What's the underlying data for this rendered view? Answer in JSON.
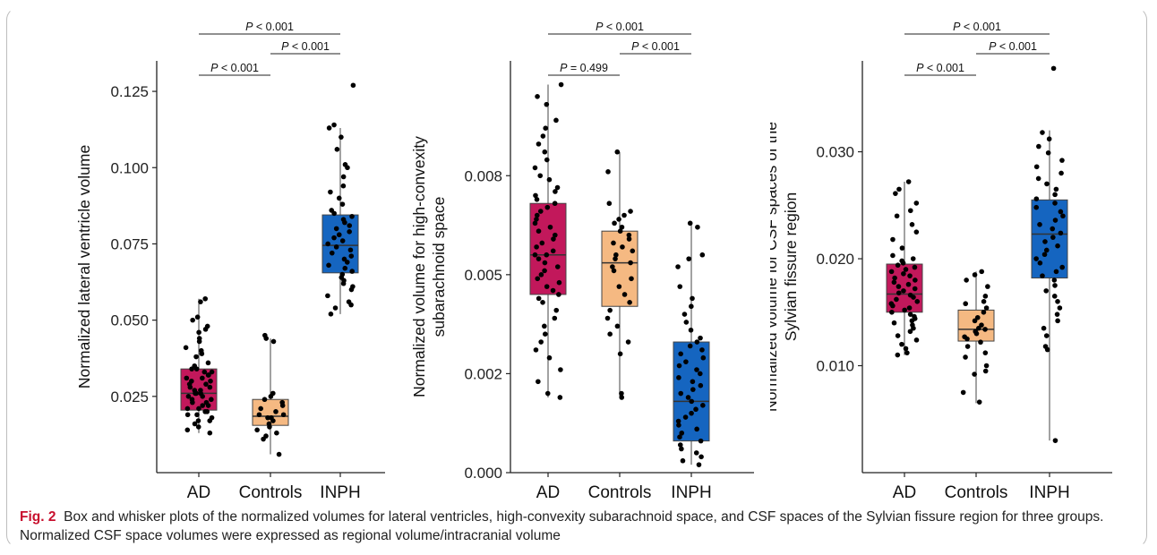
{
  "figure": {
    "caption_label": "Fig. 2",
    "caption_text": "Box and whisker plots of the normalized volumes for lateral ventricles, high-convexity subarachnoid space, and CSF spaces of the Sylvian fissure region for three groups. Normalized CSF space volumes were expressed as regional volume/intracranial volume",
    "caption_label_color": "#c8102e"
  },
  "colors": {
    "AD": "#c2185b",
    "Controls": "#f5b982",
    "INPH": "#1565c0"
  },
  "chart_data": [
    {
      "type": "box",
      "ylabel": "Normalized lateral ventricle volume",
      "categories": [
        "AD",
        "Controls",
        "INPH"
      ],
      "ylim": [
        0.0,
        0.135
      ],
      "yticks": [
        0.025,
        0.05,
        0.075,
        0.1,
        0.125
      ],
      "ytick_labels": [
        "0.025",
        "0.050",
        "0.075",
        "0.100",
        "0.125"
      ],
      "boxes": [
        {
          "group": "AD",
          "whisker_low": 0.013,
          "q1": 0.0205,
          "median": 0.026,
          "q3": 0.034,
          "whisker_high": 0.057
        },
        {
          "group": "Controls",
          "whisker_low": 0.006,
          "q1": 0.0155,
          "median": 0.0185,
          "q3": 0.024,
          "whisker_high": 0.044
        },
        {
          "group": "INPH",
          "whisker_low": 0.052,
          "q1": 0.0655,
          "median": 0.0745,
          "q3": 0.0845,
          "whisker_high": 0.113
        }
      ],
      "points": {
        "AD": [
          0.057,
          0.056,
          0.051,
          0.05,
          0.048,
          0.047,
          0.046,
          0.044,
          0.043,
          0.041,
          0.04,
          0.039,
          0.038,
          0.036,
          0.035,
          0.034,
          0.034,
          0.033,
          0.033,
          0.032,
          0.032,
          0.031,
          0.031,
          0.03,
          0.03,
          0.029,
          0.029,
          0.028,
          0.028,
          0.027,
          0.027,
          0.026,
          0.026,
          0.026,
          0.025,
          0.025,
          0.024,
          0.024,
          0.023,
          0.023,
          0.022,
          0.022,
          0.021,
          0.021,
          0.02,
          0.02,
          0.019,
          0.019,
          0.018,
          0.017,
          0.017,
          0.016,
          0.015,
          0.014,
          0.013
        ],
        "Controls": [
          0.045,
          0.044,
          0.043,
          0.026,
          0.025,
          0.024,
          0.023,
          0.022,
          0.021,
          0.02,
          0.019,
          0.019,
          0.018,
          0.018,
          0.017,
          0.016,
          0.015,
          0.014,
          0.013,
          0.012,
          0.011,
          0.006
        ],
        "INPH": [
          0.127,
          0.114,
          0.113,
          0.11,
          0.106,
          0.101,
          0.1,
          0.097,
          0.094,
          0.092,
          0.09,
          0.088,
          0.086,
          0.085,
          0.084,
          0.083,
          0.082,
          0.081,
          0.08,
          0.079,
          0.078,
          0.077,
          0.076,
          0.075,
          0.074,
          0.073,
          0.072,
          0.071,
          0.07,
          0.069,
          0.068,
          0.067,
          0.066,
          0.065,
          0.064,
          0.063,
          0.062,
          0.061,
          0.06,
          0.058,
          0.056,
          0.055,
          0.054,
          0.052
        ]
      },
      "comparisons": [
        {
          "from": "AD",
          "to": "INPH",
          "label": "P < 0.001",
          "level": 3
        },
        {
          "from": "Controls",
          "to": "INPH",
          "label": "P < 0.001",
          "level": 2
        },
        {
          "from": "AD",
          "to": "Controls",
          "label": "P < 0.001",
          "level": 1
        }
      ]
    },
    {
      "type": "box",
      "ylabel_lines": [
        "Normalized volume for high-convexity",
        "subarachnoid space"
      ],
      "categories": [
        "AD",
        "Controls",
        "INPH"
      ],
      "ylim": [
        0.0,
        0.0104
      ],
      "yticks": [
        0.0,
        0.0025,
        0.005,
        0.0075
      ],
      "ytick_labels": [
        "0.000",
        "0.002",
        "0.005",
        "0.008"
      ],
      "boxes": [
        {
          "group": "AD",
          "whisker_low": 0.0019,
          "q1": 0.0045,
          "median": 0.0055,
          "q3": 0.0068,
          "whisker_high": 0.0098
        },
        {
          "group": "Controls",
          "whisker_low": 0.0019,
          "q1": 0.0042,
          "median": 0.0053,
          "q3": 0.0061,
          "whisker_high": 0.0081
        },
        {
          "group": "INPH",
          "whisker_low": 0.0002,
          "q1": 0.0008,
          "median": 0.0018,
          "q3": 0.0033,
          "whisker_high": 0.0063
        }
      ],
      "points": {
        "AD": [
          0.0098,
          0.0095,
          0.0093,
          0.0089,
          0.0087,
          0.0085,
          0.0083,
          0.0081,
          0.0079,
          0.0077,
          0.0075,
          0.0074,
          0.0072,
          0.0071,
          0.007,
          0.0069,
          0.0068,
          0.0067,
          0.0066,
          0.0065,
          0.0064,
          0.0063,
          0.0062,
          0.0061,
          0.006,
          0.0059,
          0.0058,
          0.0057,
          0.0056,
          0.0055,
          0.0055,
          0.0054,
          0.0053,
          0.0052,
          0.0051,
          0.005,
          0.0049,
          0.0048,
          0.0047,
          0.0046,
          0.0045,
          0.0044,
          0.0043,
          0.0041,
          0.0039,
          0.0037,
          0.0035,
          0.0033,
          0.0031,
          0.0029,
          0.0026,
          0.0023,
          0.002,
          0.0019
        ],
        "Controls": [
          0.0081,
          0.0076,
          0.0068,
          0.0066,
          0.0065,
          0.0064,
          0.0063,
          0.0062,
          0.0061,
          0.006,
          0.0059,
          0.0058,
          0.0057,
          0.0056,
          0.0055,
          0.0054,
          0.0053,
          0.0052,
          0.0051,
          0.0049,
          0.0047,
          0.0045,
          0.0043,
          0.0041,
          0.0039,
          0.0037,
          0.0035,
          0.0033,
          0.003,
          0.002,
          0.0019
        ],
        "INPH": [
          0.0063,
          0.0062,
          0.0055,
          0.0054,
          0.0052,
          0.0047,
          0.0044,
          0.0042,
          0.004,
          0.0038,
          0.0036,
          0.0034,
          0.0033,
          0.0032,
          0.0031,
          0.003,
          0.0029,
          0.0028,
          0.0027,
          0.0026,
          0.0025,
          0.0024,
          0.0023,
          0.0022,
          0.0021,
          0.002,
          0.0019,
          0.0018,
          0.0017,
          0.0016,
          0.0015,
          0.0014,
          0.0013,
          0.0012,
          0.0011,
          0.001,
          0.0009,
          0.0008,
          0.0007,
          0.0006,
          0.0005,
          0.0004,
          0.0003,
          0.0002
        ]
      },
      "comparisons": [
        {
          "from": "AD",
          "to": "INPH",
          "label": "P < 0.001",
          "level": 3
        },
        {
          "from": "Controls",
          "to": "INPH",
          "label": "P < 0.001",
          "level": 2
        },
        {
          "from": "AD",
          "to": "Controls",
          "label": "P = 0.499",
          "level": 1
        }
      ]
    },
    {
      "type": "box",
      "ylabel_lines": [
        "Normalized volume for CSF spaces of the",
        "Sylvian fissure region"
      ],
      "categories": [
        "AD",
        "Controls",
        "INPH"
      ],
      "ylim": [
        0.0,
        0.0385
      ],
      "yticks": [
        0.01,
        0.02,
        0.03
      ],
      "ytick_labels": [
        "0.010",
        "0.020",
        "0.030"
      ],
      "boxes": [
        {
          "group": "AD",
          "whisker_low": 0.011,
          "q1": 0.015,
          "median": 0.0167,
          "q3": 0.0195,
          "whisker_high": 0.0272
        },
        {
          "group": "Controls",
          "whisker_low": 0.0065,
          "q1": 0.0123,
          "median": 0.0134,
          "q3": 0.0152,
          "whisker_high": 0.0188
        },
        {
          "group": "INPH",
          "whisker_low": 0.003,
          "q1": 0.0182,
          "median": 0.0223,
          "q3": 0.0255,
          "whisker_high": 0.032
        }
      ],
      "points": {
        "AD": [
          0.0272,
          0.0265,
          0.0261,
          0.0252,
          0.0245,
          0.024,
          0.0232,
          0.0225,
          0.0218,
          0.021,
          0.0203,
          0.02,
          0.0198,
          0.0196,
          0.0194,
          0.0192,
          0.019,
          0.0188,
          0.0186,
          0.0184,
          0.0182,
          0.018,
          0.0178,
          0.0176,
          0.0174,
          0.0172,
          0.017,
          0.0168,
          0.0166,
          0.0164,
          0.0162,
          0.016,
          0.0158,
          0.0156,
          0.0154,
          0.0152,
          0.015,
          0.0148,
          0.0146,
          0.0144,
          0.0142,
          0.014,
          0.0138,
          0.0135,
          0.0132,
          0.0128,
          0.0124,
          0.012,
          0.0116,
          0.0112,
          0.011
        ],
        "Controls": [
          0.0188,
          0.0185,
          0.018,
          0.0174,
          0.0165,
          0.016,
          0.0158,
          0.0154,
          0.015,
          0.0145,
          0.0142,
          0.0138,
          0.0135,
          0.0134,
          0.0132,
          0.013,
          0.0127,
          0.0125,
          0.0122,
          0.0118,
          0.0112,
          0.0108,
          0.01,
          0.0095,
          0.0092,
          0.0075,
          0.0066
        ],
        "INPH": [
          0.0378,
          0.0318,
          0.0312,
          0.0305,
          0.0299,
          0.0292,
          0.0286,
          0.028,
          0.0275,
          0.027,
          0.0265,
          0.026,
          0.0256,
          0.0252,
          0.0248,
          0.0244,
          0.024,
          0.0236,
          0.0232,
          0.0228,
          0.0224,
          0.022,
          0.0216,
          0.0212,
          0.0208,
          0.0204,
          0.02,
          0.0196,
          0.0192,
          0.0188,
          0.0184,
          0.018,
          0.0175,
          0.017,
          0.0165,
          0.016,
          0.0154,
          0.0148,
          0.0142,
          0.0135,
          0.0128,
          0.0118,
          0.0115,
          0.003
        ]
      },
      "comparisons": [
        {
          "from": "AD",
          "to": "INPH",
          "label": "P < 0.001",
          "level": 3
        },
        {
          "from": "Controls",
          "to": "INPH",
          "label": "P < 0.001",
          "level": 2
        },
        {
          "from": "AD",
          "to": "Controls",
          "label": "P < 0.001",
          "level": 1
        }
      ]
    }
  ]
}
